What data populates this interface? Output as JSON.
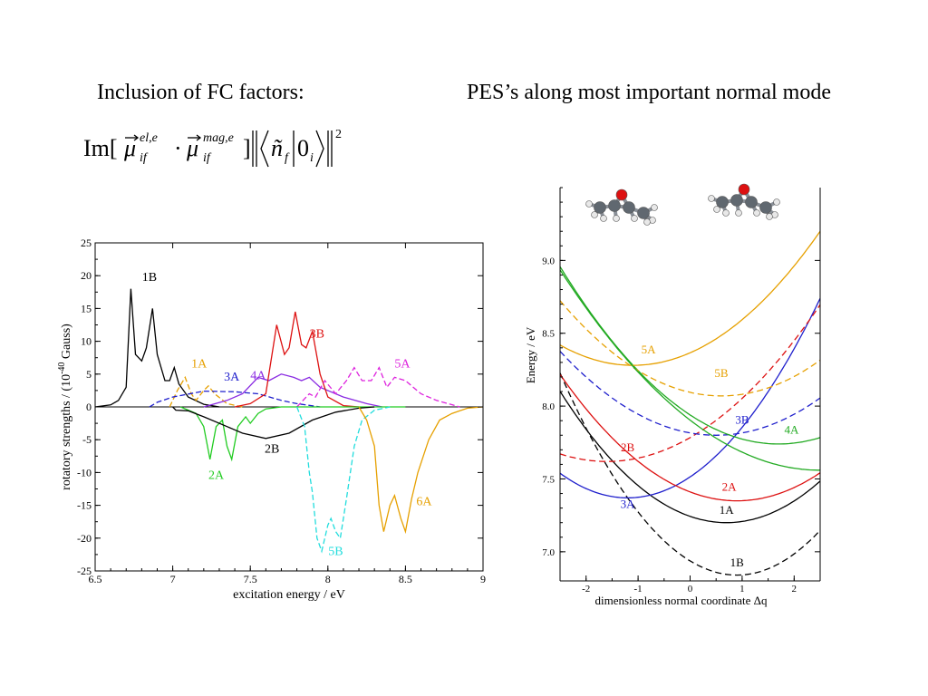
{
  "headings": {
    "left": "Inclusion of FC factors:",
    "right": "PES’s along most important normal mode"
  },
  "formula": {
    "prefix": "Im[",
    "mu": "μ",
    "sup_el": "el,e",
    "sub_if": "if",
    "dot": "·",
    "sup_mag": "mag,e",
    "close": "]",
    "n": "ñ",
    "sub_f": "f",
    "zero": "0",
    "sub_i": "i",
    "power": "2"
  },
  "chart_data": [
    {
      "type": "line",
      "xlabel": "excitation energy / eV",
      "ylabel_main": "rotatory strengths / (10",
      "ylabel_exp": "-40",
      "ylabel_tail": " Gauss)",
      "xlim": [
        6.5,
        9
      ],
      "ylim": [
        -25,
        25
      ],
      "xticks": [
        {
          "v": 6.5,
          "label": "6.5"
        },
        {
          "v": 7,
          "label": "7"
        },
        {
          "v": 7.5,
          "label": "7.5"
        },
        {
          "v": 8,
          "label": "8"
        },
        {
          "v": 8.5,
          "label": "8.5"
        },
        {
          "v": 9,
          "label": "9"
        }
      ],
      "yticks": [
        {
          "v": 25,
          "label": "25"
        },
        {
          "v": 20,
          "label": "20"
        },
        {
          "v": 15,
          "label": "15"
        },
        {
          "v": 10,
          "label": "10"
        },
        {
          "v": 5,
          "label": "5"
        },
        {
          "v": 0,
          "label": "0"
        },
        {
          "v": -5,
          "label": "-5"
        },
        {
          "v": -10,
          "label": "-10"
        },
        {
          "v": -15,
          "label": "-15"
        },
        {
          "v": -20,
          "label": "-20"
        },
        {
          "v": -25,
          "label": "-25"
        }
      ],
      "series": [
        {
          "name": "1B",
          "color": "#000000",
          "dash": false,
          "points": [
            [
              6.5,
              0
            ],
            [
              6.6,
              0.3
            ],
            [
              6.65,
              1
            ],
            [
              6.7,
              3
            ],
            [
              6.73,
              18
            ],
            [
              6.76,
              8
            ],
            [
              6.8,
              7
            ],
            [
              6.83,
              9
            ],
            [
              6.87,
              15
            ],
            [
              6.9,
              8
            ],
            [
              6.95,
              4
            ],
            [
              6.98,
              4
            ],
            [
              7.01,
              6
            ],
            [
              7.04,
              3.5
            ],
            [
              7.1,
              1.5
            ],
            [
              7.2,
              0.4
            ],
            [
              7.3,
              0
            ]
          ],
          "label": {
            "text": "1B",
            "x": 6.85,
            "y": 19.2
          }
        },
        {
          "name": "1A",
          "color": "#e6a000",
          "dash": true,
          "points": [
            [
              6.98,
              0
            ],
            [
              7.03,
              2.5
            ],
            [
              7.08,
              4.5
            ],
            [
              7.12,
              2
            ],
            [
              7.15,
              1
            ],
            [
              7.2,
              2.5
            ],
            [
              7.23,
              3.2
            ],
            [
              7.27,
              2
            ],
            [
              7.35,
              0.5
            ],
            [
              7.45,
              0
            ]
          ],
          "label": {
            "text": "1A",
            "x": 7.17,
            "y": 6
          }
        },
        {
          "name": "3A",
          "color": "#1e1ecc",
          "dash": true,
          "points": [
            [
              6.85,
              0
            ],
            [
              6.9,
              0.7
            ],
            [
              7.0,
              1.5
            ],
            [
              7.2,
              2.4
            ],
            [
              7.4,
              2.3
            ],
            [
              7.55,
              2
            ],
            [
              7.7,
              1
            ],
            [
              7.8,
              0.5
            ],
            [
              7.95,
              0
            ]
          ],
          "label": {
            "text": "3A",
            "x": 7.38,
            "y": 4
          }
        },
        {
          "name": "4A",
          "color": "#8a2be2",
          "dash": false,
          "points": [
            [
              7.2,
              0
            ],
            [
              7.35,
              1
            ],
            [
              7.45,
              2
            ],
            [
              7.55,
              4.5
            ],
            [
              7.62,
              4
            ],
            [
              7.7,
              5
            ],
            [
              7.78,
              4.5
            ],
            [
              7.83,
              4
            ],
            [
              7.88,
              4.5
            ],
            [
              7.95,
              3
            ],
            [
              8.1,
              1.5
            ],
            [
              8.25,
              0.5
            ],
            [
              8.35,
              0
            ]
          ],
          "label": {
            "text": "4A",
            "x": 7.55,
            "y": 4.2
          }
        },
        {
          "name": "3B",
          "color": "#dd1111",
          "dash": false,
          "points": [
            [
              7.4,
              0
            ],
            [
              7.5,
              0.5
            ],
            [
              7.6,
              2
            ],
            [
              7.67,
              12.5
            ],
            [
              7.72,
              8
            ],
            [
              7.75,
              9
            ],
            [
              7.79,
              14.5
            ],
            [
              7.83,
              9.5
            ],
            [
              7.86,
              9
            ],
            [
              7.9,
              11.5
            ],
            [
              7.95,
              5
            ],
            [
              8.0,
              1.5
            ],
            [
              8.1,
              0.2
            ],
            [
              8.2,
              0
            ]
          ],
          "label": {
            "text": "3B",
            "x": 7.93,
            "y": 10.6
          }
        },
        {
          "name": "5A",
          "color": "#dd22dd",
          "dash": true,
          "points": [
            [
              7.8,
              0
            ],
            [
              7.88,
              2
            ],
            [
              7.92,
              1.5
            ],
            [
              7.98,
              4
            ],
            [
              8.05,
              2
            ],
            [
              8.12,
              4
            ],
            [
              8.17,
              6
            ],
            [
              8.22,
              4
            ],
            [
              8.28,
              4
            ],
            [
              8.33,
              6
            ],
            [
              8.38,
              3
            ],
            [
              8.43,
              4.5
            ],
            [
              8.5,
              4
            ],
            [
              8.6,
              2
            ],
            [
              8.7,
              1
            ],
            [
              8.85,
              0
            ]
          ],
          "label": {
            "text": "5A",
            "x": 8.48,
            "y": 6
          }
        },
        {
          "name": "2A",
          "color": "#22cc22",
          "dash": false,
          "points": [
            [
              7.05,
              0
            ],
            [
              7.15,
              -1
            ],
            [
              7.2,
              -3
            ],
            [
              7.24,
              -8
            ],
            [
              7.28,
              -3
            ],
            [
              7.32,
              -2
            ],
            [
              7.35,
              -6
            ],
            [
              7.38,
              -8
            ],
            [
              7.42,
              -3
            ],
            [
              7.47,
              -1.5
            ],
            [
              7.5,
              -2.5
            ],
            [
              7.55,
              -1
            ],
            [
              7.6,
              -0.3
            ],
            [
              7.7,
              0
            ],
            [
              8.5,
              0
            ]
          ],
          "label": {
            "text": "2A",
            "x": 7.28,
            "y": -11
          }
        },
        {
          "name": "2B",
          "color": "#000000",
          "dash": false,
          "points": [
            [
              7.0,
              0
            ],
            [
              7.02,
              -0.5
            ],
            [
              7.1,
              -0.6
            ],
            [
              7.2,
              -1.5
            ],
            [
              7.35,
              -3
            ],
            [
              7.45,
              -4
            ],
            [
              7.6,
              -4.8
            ],
            [
              7.75,
              -4
            ],
            [
              7.9,
              -2
            ],
            [
              8.05,
              -0.8
            ],
            [
              8.2,
              -0.2
            ],
            [
              8.3,
              0
            ]
          ],
          "label": {
            "text": "2B",
            "x": 7.64,
            "y": -7
          }
        },
        {
          "name": "5B",
          "color": "#22dddd",
          "dash": true,
          "points": [
            [
              7.8,
              0
            ],
            [
              7.85,
              -3
            ],
            [
              7.88,
              -10
            ],
            [
              7.9,
              -13
            ],
            [
              7.93,
              -20
            ],
            [
              7.96,
              -22
            ],
            [
              8.0,
              -18
            ],
            [
              8.02,
              -17
            ],
            [
              8.05,
              -19
            ],
            [
              8.08,
              -20
            ],
            [
              8.12,
              -14
            ],
            [
              8.17,
              -6
            ],
            [
              8.22,
              -2
            ],
            [
              8.3,
              -0.5
            ],
            [
              8.4,
              0
            ]
          ],
          "label": {
            "text": "5B",
            "x": 8.05,
            "y": -22.6
          }
        },
        {
          "name": "6A",
          "color": "#e6a000",
          "dash": false,
          "points": [
            [
              8.2,
              0
            ],
            [
              8.25,
              -2
            ],
            [
              8.3,
              -6
            ],
            [
              8.33,
              -15
            ],
            [
              8.36,
              -19
            ],
            [
              8.4,
              -15
            ],
            [
              8.43,
              -13.5
            ],
            [
              8.47,
              -17
            ],
            [
              8.5,
              -19
            ],
            [
              8.54,
              -14
            ],
            [
              8.58,
              -10
            ],
            [
              8.65,
              -5
            ],
            [
              8.72,
              -2
            ],
            [
              8.8,
              -1
            ],
            [
              8.9,
              -0.2
            ],
            [
              9.0,
              0
            ]
          ],
          "label": {
            "text": "6A",
            "x": 8.62,
            "y": -15
          }
        }
      ]
    },
    {
      "type": "line",
      "xlabel": "dimensionless normal coordinate Δq",
      "ylabel": "Energy / eV",
      "xlim": [
        -2.5,
        2.5
      ],
      "ylim": [
        6.8,
        9.5
      ],
      "xticks": [
        {
          "v": -2,
          "label": "-2"
        },
        {
          "v": -1,
          "label": "-1"
        },
        {
          "v": 0,
          "label": "0"
        },
        {
          "v": 1,
          "label": "1"
        },
        {
          "v": 2,
          "label": "2"
        }
      ],
      "yticks": [
        {
          "v": 7.0,
          "label": "7.0"
        },
        {
          "v": 7.5,
          "label": "7.5"
        },
        {
          "v": 8.0,
          "label": "8.0"
        },
        {
          "v": 8.5,
          "label": "8.5"
        },
        {
          "v": 9.0,
          "label": "9.0"
        }
      ],
      "series": [
        {
          "name": "1B",
          "color": "#000000",
          "dash": true,
          "min_x": 0.9,
          "min_y": 6.84,
          "curv": 0.12,
          "label": {
            "text": "1B",
            "x": 0.9,
            "y": 6.9
          }
        },
        {
          "name": "1A",
          "color": "#000000",
          "dash": false,
          "min_x": 0.7,
          "min_y": 7.2,
          "curv": 0.088,
          "label": {
            "text": "1A",
            "x": 0.7,
            "y": 7.26
          }
        },
        {
          "name": "3A",
          "color": "#1e1ecc",
          "dash": false,
          "min_x": -1.2,
          "min_y": 7.37,
          "curv": 0.1,
          "label": {
            "text": "3A",
            "x": -1.2,
            "y": 7.3
          }
        },
        {
          "name": "2A",
          "color": "#dd1111",
          "dash": false,
          "min_x": 0.9,
          "min_y": 7.35,
          "curv": 0.075,
          "label": {
            "text": "2A",
            "x": 0.75,
            "y": 7.42
          }
        },
        {
          "name": "2B",
          "color": "#dd1111",
          "dash": true,
          "min_x": -1.6,
          "min_y": 7.62,
          "curv": 0.064,
          "label": {
            "text": "2B",
            "x": -1.2,
            "y": 7.69
          }
        },
        {
          "name": "3B",
          "color": "#1e1ecc",
          "dash": true,
          "min_x": 0.5,
          "min_y": 7.8,
          "curv": 0.064,
          "label": {
            "text": "3B",
            "x": 1.0,
            "y": 7.88
          }
        },
        {
          "name": "4A",
          "color": "#22aa22",
          "dash": false,
          "min_x": 1.7,
          "min_y": 7.74,
          "curv": 0.069,
          "label": {
            "text": "4A",
            "x": 1.95,
            "y": 7.81
          }
        },
        {
          "name": "5B",
          "color": "#e6a000",
          "dash": true,
          "min_x": 0.6,
          "min_y": 8.07,
          "curv": 0.068,
          "label": {
            "text": "5B",
            "x": 0.6,
            "y": 8.2
          }
        },
        {
          "name": "5A",
          "color": "#e6a000",
          "dash": false,
          "min_x": -1.1,
          "min_y": 8.28,
          "curv": 0.071,
          "label": {
            "text": "5A",
            "x": -0.8,
            "y": 8.36
          }
        },
        {
          "name": "green-high",
          "color": "#22aa22",
          "dash": false,
          "min_x": 2.5,
          "min_y": 7.56,
          "curv": 0.055,
          "label": null
        }
      ]
    }
  ],
  "molecule_colors": {
    "carbon": "#606870",
    "oxygen": "#dd1111",
    "hydrogen": "#e8e8e8"
  }
}
